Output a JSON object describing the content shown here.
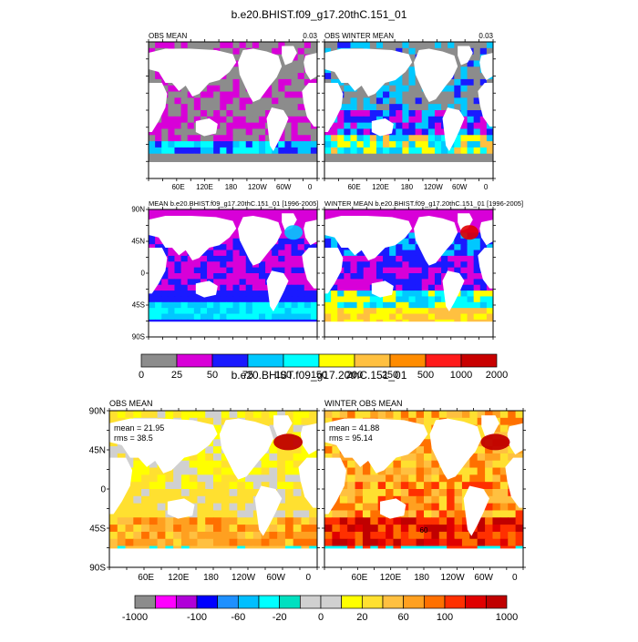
{
  "top": {
    "title": "b.e20.BHIST.f09_g17.20thC.151_01",
    "panels": [
      {
        "left_label": "OBS MEAN",
        "right_label": "0.03"
      },
      {
        "left_label": "OBS WINTER MEAN",
        "right_label": "0.03"
      },
      {
        "left_label": "MEAN b.e20.BHIST.f09_g17.20thC.151_01 [1996-2005]",
        "right_label": ""
      },
      {
        "left_label": "WINTER MEAN b.e20.BHIST.f09_g17.20thC.151_01 [1996-2005]",
        "right_label": ""
      }
    ],
    "colorbar": {
      "labels": [
        "0",
        "25",
        "50",
        "75",
        "100",
        "150",
        "200",
        "250",
        "500",
        "1000",
        "2000"
      ],
      "colors": [
        "#8c8c8c",
        "#d800d8",
        "#1a1aff",
        "#00c8ff",
        "#00ffff",
        "#ffff00",
        "#ffc040",
        "#ff8c00",
        "#ff1a1a",
        "#c80000"
      ]
    }
  },
  "bottom": {
    "title": "b.e20.BHIST.f09_g17.20thC.151_01",
    "panels": [
      {
        "left_label": "OBS MEAN",
        "mean_text": "mean = 21.95",
        "rms_text": "rms = 38.5"
      },
      {
        "left_label": "WINTER OBS MEAN",
        "mean_text": "mean = 41.88",
        "rms_text": "rms = 95.14",
        "contour_label": "60"
      }
    ],
    "colorbar": {
      "labels": [
        "-1000",
        "-100",
        "-60",
        "-20",
        "0",
        "20",
        "60",
        "100",
        "1000"
      ],
      "colors": [
        "#8c8c8c",
        "#ff00ff",
        "#b000d8",
        "#0000ff",
        "#1e90ff",
        "#00bfff",
        "#00ffff",
        "#00e0c0",
        "#d0d0d0",
        "#d0d0d0",
        "#ffff00",
        "#ffe030",
        "#ffc040",
        "#ffa020",
        "#ff7000",
        "#ff3000",
        "#e00000",
        "#c00000"
      ]
    }
  },
  "axes": {
    "lat_labels": [
      "90N",
      "45N",
      "0",
      "45S",
      "90S"
    ],
    "lon_labels": [
      "60E",
      "120E",
      "180",
      "120W",
      "60W",
      "0"
    ]
  },
  "colors": {
    "land": "#ffffff",
    "frame": "#000000"
  }
}
